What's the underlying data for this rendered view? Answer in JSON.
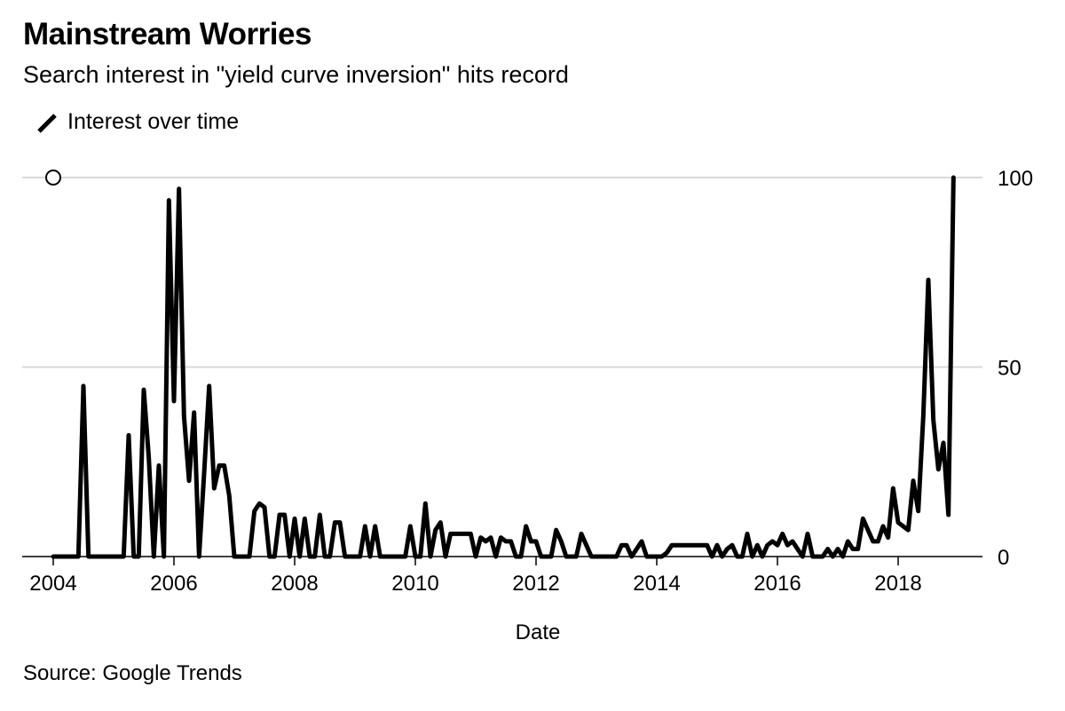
{
  "title": "Mainstream Worries",
  "subtitle": "Search interest in \"yield curve inversion\" hits record",
  "source": "Source: Google Trends",
  "legend": {
    "items": [
      {
        "label": "Interest over time",
        "icon": "line-swatch-icon",
        "color": "#000000"
      }
    ]
  },
  "colors": {
    "line": "#000000",
    "grid": "#d9d9d9",
    "axis": "#000000",
    "background": "#ffffff"
  },
  "chart_data": {
    "type": "line",
    "title": "Mainstream Worries",
    "subtitle": "Search interest in \"yield curve inversion\" hits record",
    "xlabel": "Date",
    "ylabel": "",
    "x_start": "2004-01",
    "x_frequency": "monthly",
    "xlim": [
      2004,
      2019.4
    ],
    "ylim": [
      0,
      100
    ],
    "x_ticks": [
      2004,
      2006,
      2008,
      2010,
      2012,
      2014,
      2016,
      2018
    ],
    "x_tick_labels": [
      "2004",
      "2006",
      "2008",
      "2010",
      "2012",
      "2014",
      "2016",
      "2018"
    ],
    "y_ticks": [
      0,
      50,
      100
    ],
    "y_tick_labels": [
      "0",
      "50",
      "100"
    ],
    "y_axis_side": "right",
    "grid": true,
    "legend_position": "top-left",
    "marker": {
      "type": "open-circle",
      "x": 2004,
      "y": 100
    },
    "series": [
      {
        "name": "Interest over time",
        "color": "#000000",
        "values": [
          0,
          0,
          0,
          0,
          0,
          0,
          45,
          0,
          0,
          0,
          0,
          0,
          0,
          0,
          0,
          32,
          0,
          0,
          44,
          26,
          0,
          24,
          0,
          94,
          41,
          97,
          37,
          20,
          38,
          0,
          22,
          45,
          18,
          24,
          24,
          16,
          0,
          0,
          0,
          0,
          12,
          14,
          13,
          0,
          0,
          11,
          11,
          0,
          10,
          0,
          10,
          0,
          0,
          11,
          0,
          0,
          9,
          9,
          0,
          0,
          0,
          0,
          8,
          0,
          8,
          0,
          0,
          0,
          0,
          0,
          0,
          8,
          0,
          0,
          14,
          0,
          7,
          9,
          0,
          6,
          6,
          6,
          6,
          6,
          0,
          5,
          4,
          5,
          0,
          5,
          4,
          4,
          0,
          0,
          8,
          4,
          4,
          0,
          0,
          0,
          7,
          4,
          0,
          0,
          0,
          6,
          3,
          0,
          0,
          0,
          0,
          0,
          0,
          3,
          3,
          0,
          2,
          4,
          0,
          0,
          0,
          0,
          1,
          3,
          3,
          3,
          3,
          3,
          3,
          3,
          3,
          0,
          3,
          0,
          2,
          3,
          0,
          0,
          6,
          0,
          3,
          0,
          3,
          4,
          3,
          6,
          3,
          4,
          2,
          0,
          6,
          0,
          0,
          0,
          2,
          0,
          2,
          0,
          4,
          2,
          2,
          10,
          7,
          4,
          4,
          8,
          5,
          18,
          9,
          8,
          7,
          20,
          12,
          37,
          73,
          36,
          23,
          30,
          11,
          100
        ]
      }
    ]
  }
}
